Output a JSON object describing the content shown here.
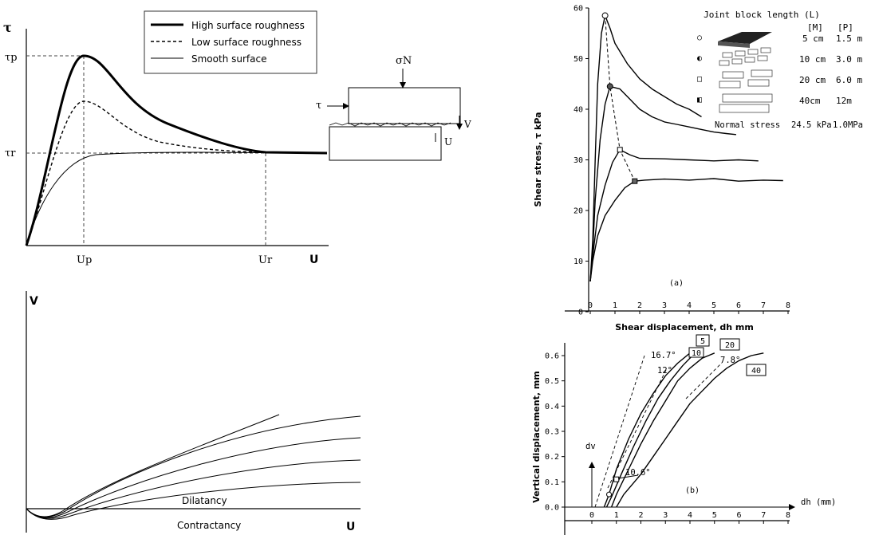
{
  "shear_model": {
    "y_axis_label": "τ",
    "x_axis_label": "U",
    "ticks": {
      "tau_p": "τp",
      "tau_r": "τr",
      "U_p": "Up",
      "U_r": "Ur"
    },
    "legend": [
      "High surface roughness",
      "Low surface roughness",
      "Smooth surface"
    ],
    "inset": {
      "normal": "σN",
      "shear": "τ",
      "vertical": "V",
      "horizontal": "U"
    }
  },
  "dilation_model": {
    "y_axis_label": "V",
    "x_axis_label": "U",
    "dilatancy_label": "Dilatancy",
    "contractancy_label": "Contractancy"
  },
  "chart_data": [
    {
      "type": "line",
      "panel": "(a)",
      "xlabel": "Shear displacement, dh mm",
      "ylabel": "Shear stress, τ kPa",
      "xlim": [
        0,
        8
      ],
      "ylim": [
        0,
        60
      ],
      "xticks": [
        "0",
        "1",
        "2",
        "3",
        "4",
        "5",
        "6",
        "7",
        "8"
      ],
      "yticks": [
        "0",
        "10",
        "20",
        "30",
        "40",
        "50",
        "60"
      ],
      "legend_title": "Joint block length (L)",
      "legend_headers": [
        "[M]",
        "[P]"
      ],
      "legend_rows": [
        {
          "marker": "○",
          "M": "5 cm",
          "P": "1.5 m"
        },
        {
          "marker": "◐",
          "M": "10 cm",
          "P": "3.0 m"
        },
        {
          "marker": "□",
          "M": "20 cm",
          "P": "6.0 m"
        },
        {
          "marker": "◧",
          "M": "40cm",
          "P": "12m"
        }
      ],
      "normal_stress_label": "Normal stress",
      "normal_stress_M": "24.5 kPa",
      "normal_stress_P": "1.0MPa",
      "series": [
        {
          "x": [
            0,
            0.1,
            0.2,
            0.3,
            0.45,
            0.6,
            0.8,
            1.0,
            1.5,
            2.0,
            2.5,
            3.0,
            3.5,
            4.0,
            4.5
          ],
          "y": [
            6,
            14,
            30,
            45,
            55,
            58.5,
            56,
            53,
            49,
            46,
            44,
            42.5,
            41,
            40,
            38.5
          ]
        },
        {
          "x": [
            0,
            0.1,
            0.2,
            0.4,
            0.6,
            0.8,
            1.2,
            1.6,
            2.0,
            2.5,
            3.0,
            3.5,
            4.0,
            4.5,
            5.0,
            5.5,
            5.9
          ],
          "y": [
            6,
            12,
            22,
            34,
            41,
            44.5,
            44,
            42,
            40,
            38.5,
            37.5,
            37,
            36.5,
            36,
            35.5,
            35.2,
            35
          ]
        },
        {
          "x": [
            0,
            0.1,
            0.3,
            0.6,
            0.9,
            1.2,
            1.6,
            2.0,
            3.0,
            4.0,
            5.0,
            6.0,
            6.8
          ],
          "y": [
            6,
            11,
            19,
            25,
            29.5,
            32,
            31,
            30.3,
            30.2,
            30,
            29.8,
            30,
            29.8
          ]
        },
        {
          "x": [
            0,
            0.1,
            0.3,
            0.6,
            1.0,
            1.4,
            1.8,
            2.2,
            3.0,
            4.0,
            5.0,
            6.0,
            7.0,
            7.8
          ],
          "y": [
            6,
            10,
            15,
            19,
            22,
            24.5,
            25.8,
            26,
            26.2,
            26,
            26.3,
            25.8,
            26,
            25.9
          ]
        }
      ],
      "peak_path": {
        "x": [
          0.6,
          0.8,
          1.2,
          1.8
        ],
        "y": [
          58.5,
          44.5,
          32,
          25.8
        ]
      },
      "annotation": "(a)"
    },
    {
      "type": "line",
      "panel": "(b)",
      "xlabel": "dh (mm)",
      "ylabel": "Vertical displacement, mm",
      "inner_y_label": "dv",
      "xlim": [
        0,
        8
      ],
      "ylim": [
        0,
        0.6
      ],
      "xticks": [
        "0",
        "1",
        "2",
        "3",
        "4",
        "5",
        "6",
        "7",
        "8"
      ],
      "yticks": [
        "0.0",
        "0.1",
        "0.2",
        "0.3",
        "0.4",
        "0.5",
        "0.6"
      ],
      "series": [
        {
          "name": "5",
          "x": [
            0.5,
            0.7,
            1.0,
            1.5,
            2.0,
            2.5,
            3.0,
            3.5,
            4.0,
            4.2
          ],
          "y": [
            0,
            0.05,
            0.15,
            0.27,
            0.37,
            0.45,
            0.52,
            0.57,
            0.61,
            0.62
          ]
        },
        {
          "name": "10",
          "x": [
            0.6,
            0.8,
            1.2,
            1.7,
            2.2,
            2.7,
            3.2,
            3.7,
            4.1
          ],
          "y": [
            0,
            0.04,
            0.13,
            0.24,
            0.34,
            0.43,
            0.5,
            0.56,
            0.6
          ]
        },
        {
          "name": "20",
          "x": [
            0.8,
            1.0,
            1.5,
            2.0,
            2.5,
            3.0,
            3.5,
            4.0,
            4.5,
            5.0
          ],
          "y": [
            0,
            0.05,
            0.15,
            0.25,
            0.34,
            0.42,
            0.5,
            0.55,
            0.59,
            0.61
          ]
        },
        {
          "name": "40",
          "x": [
            1.0,
            1.3,
            2.0,
            2.5,
            3.0,
            3.5,
            4.0,
            4.5,
            5.0,
            5.5,
            6.0,
            6.5,
            7.0
          ],
          "y": [
            0,
            0.05,
            0.13,
            0.2,
            0.27,
            0.34,
            0.41,
            0.46,
            0.51,
            0.55,
            0.58,
            0.6,
            0.61
          ]
        }
      ],
      "box_labels": [
        "5",
        "10",
        "20",
        "40"
      ],
      "angle_labels": [
        "16.7°",
        "12°",
        "7.8°",
        "10.6°"
      ],
      "annotation": "(b)"
    }
  ]
}
